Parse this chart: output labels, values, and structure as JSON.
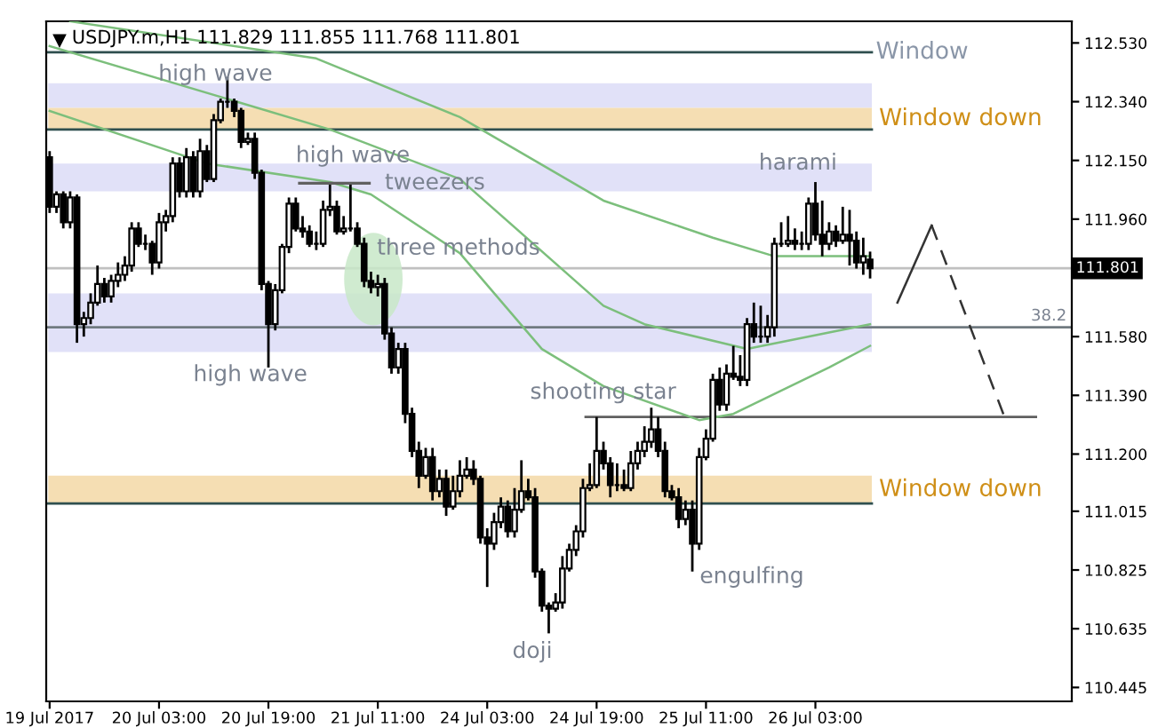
{
  "chart_data": {
    "type": "candlestick",
    "title": "USDJPY.m,H1 111.829 111.855 111.768 111.801",
    "categories": [
      "19 Jul 2017",
      null,
      null,
      null,
      null,
      null,
      null,
      null,
      null,
      null,
      null,
      null,
      null,
      null,
      null,
      null,
      "20 Jul 03:00",
      null,
      null,
      null,
      null,
      null,
      null,
      null,
      null,
      null,
      null,
      null,
      null,
      null,
      null,
      null,
      "20 Jul 19:00",
      null,
      null,
      null,
      null,
      null,
      null,
      null,
      null,
      null,
      null,
      null,
      null,
      null,
      null,
      null,
      "21 Jul 11:00",
      null,
      null,
      null,
      null,
      null,
      null,
      null,
      null,
      null,
      null,
      null,
      null,
      null,
      null,
      null,
      "24 Jul 03:00",
      null,
      null,
      null,
      null,
      null,
      null,
      null,
      null,
      null,
      null,
      null,
      null,
      null,
      null,
      null,
      "24 Jul 19:00",
      null,
      null,
      null,
      null,
      null,
      null,
      null,
      null,
      null,
      null,
      null,
      null,
      null,
      null,
      null,
      "25 Jul 11:00",
      null,
      null,
      null,
      null,
      null,
      null,
      null,
      null,
      null,
      null,
      null,
      null,
      null,
      null,
      null,
      "26 Jul 03:00",
      null,
      null,
      null,
      null,
      null,
      null,
      null,
      null,
      null,
      null,
      null,
      null,
      null,
      null,
      null,
      null,
      null,
      null,
      null,
      null,
      null,
      null,
      null,
      null,
      null,
      null,
      null,
      null,
      null,
      null,
      null,
      null,
      null,
      null,
      null,
      null,
      null
    ],
    "ohlc": [
      [
        112.16,
        112.18,
        111.98,
        112.0
      ],
      [
        112.0,
        112.05,
        111.98,
        112.04
      ],
      [
        112.04,
        112.05,
        111.93,
        111.95
      ],
      [
        111.95,
        112.05,
        111.93,
        112.03
      ],
      [
        112.03,
        112.04,
        111.56,
        111.62
      ],
      [
        111.62,
        111.66,
        111.58,
        111.64
      ],
      [
        111.64,
        111.72,
        111.62,
        111.69
      ],
      [
        111.69,
        111.81,
        111.68,
        111.75
      ],
      [
        111.75,
        111.77,
        111.69,
        111.71
      ],
      [
        111.71,
        111.78,
        111.69,
        111.76
      ],
      [
        111.76,
        111.82,
        111.74,
        111.78
      ],
      [
        111.78,
        111.84,
        111.76,
        111.81
      ],
      [
        111.81,
        111.95,
        111.79,
        111.93
      ],
      [
        111.93,
        111.95,
        111.87,
        111.88
      ],
      [
        111.88,
        111.91,
        111.86,
        111.88
      ],
      [
        111.88,
        111.89,
        111.78,
        111.82
      ],
      [
        111.82,
        111.98,
        111.8,
        111.95
      ],
      [
        111.95,
        111.99,
        111.92,
        111.97
      ],
      [
        111.97,
        112.16,
        111.95,
        112.14
      ],
      [
        112.14,
        112.16,
        112.03,
        112.05
      ],
      [
        112.05,
        112.19,
        112.03,
        112.16
      ],
      [
        112.16,
        112.18,
        112.03,
        112.05
      ],
      [
        112.05,
        112.22,
        112.03,
        112.18
      ],
      [
        112.18,
        112.2,
        112.08,
        112.09
      ],
      [
        112.09,
        112.3,
        112.08,
        112.28
      ],
      [
        112.28,
        112.35,
        112.27,
        112.34
      ],
      [
        112.34,
        112.42,
        112.32,
        112.34
      ],
      [
        112.34,
        112.35,
        112.29,
        112.31
      ],
      [
        112.31,
        112.32,
        112.19,
        112.21
      ],
      [
        112.21,
        112.24,
        112.2,
        112.22
      ],
      [
        112.22,
        112.24,
        112.09,
        112.11
      ],
      [
        112.11,
        112.12,
        111.73,
        111.75
      ],
      [
        111.75,
        111.76,
        111.48,
        111.62
      ],
      [
        111.62,
        111.75,
        111.6,
        111.73
      ],
      [
        111.73,
        111.88,
        111.72,
        111.87
      ],
      [
        111.87,
        112.03,
        111.85,
        112.01
      ],
      [
        112.01,
        112.03,
        111.92,
        111.93
      ],
      [
        111.93,
        111.97,
        111.9,
        111.92
      ],
      [
        111.92,
        111.94,
        111.87,
        111.88
      ],
      [
        111.88,
        111.92,
        111.86,
        111.88
      ],
      [
        111.88,
        112.02,
        111.87,
        111.99
      ],
      [
        111.99,
        112.08,
        111.97,
        112.0
      ],
      [
        112.0,
        112.02,
        111.91,
        111.92
      ],
      [
        111.92,
        111.97,
        111.91,
        111.93
      ],
      [
        111.93,
        112.08,
        111.92,
        111.93
      ],
      [
        111.93,
        111.95,
        111.87,
        111.88
      ],
      [
        111.88,
        111.9,
        111.74,
        111.76
      ],
      [
        111.76,
        111.79,
        111.72,
        111.74
      ],
      [
        111.74,
        111.78,
        111.71,
        111.75
      ],
      [
        111.75,
        111.77,
        111.57,
        111.59
      ],
      [
        111.59,
        111.61,
        111.46,
        111.48
      ],
      [
        111.48,
        111.56,
        111.46,
        111.54
      ],
      [
        111.54,
        111.56,
        111.3,
        111.33
      ],
      [
        111.33,
        111.35,
        111.19,
        111.21
      ],
      [
        111.21,
        111.24,
        111.09,
        111.13
      ],
      [
        111.13,
        111.22,
        111.12,
        111.19
      ],
      [
        111.19,
        111.22,
        111.05,
        111.08
      ],
      [
        111.08,
        111.15,
        111.06,
        111.12
      ],
      [
        111.12,
        111.15,
        111.0,
        111.03
      ],
      [
        111.03,
        111.13,
        111.02,
        111.08
      ],
      [
        111.08,
        111.18,
        111.06,
        111.13
      ],
      [
        111.13,
        111.19,
        111.12,
        111.15
      ],
      [
        111.15,
        111.18,
        111.1,
        111.12
      ],
      [
        111.12,
        111.13,
        110.91,
        110.93
      ],
      [
        110.93,
        110.96,
        110.77,
        110.91
      ],
      [
        110.91,
        111.01,
        110.89,
        110.98
      ],
      [
        110.98,
        111.06,
        110.96,
        111.03
      ],
      [
        111.03,
        111.05,
        110.93,
        110.95
      ],
      [
        110.95,
        111.09,
        110.93,
        111.02
      ],
      [
        111.02,
        111.18,
        111.01,
        111.08
      ],
      [
        111.08,
        111.12,
        111.05,
        111.06
      ],
      [
        111.06,
        111.09,
        110.8,
        110.82
      ],
      [
        110.82,
        110.83,
        110.69,
        110.71
      ],
      [
        110.71,
        110.72,
        110.62,
        110.7
      ],
      [
        110.7,
        110.75,
        110.69,
        110.72
      ],
      [
        110.72,
        110.87,
        110.7,
        110.83
      ],
      [
        110.83,
        110.91,
        110.82,
        110.89
      ],
      [
        110.89,
        110.97,
        110.87,
        110.95
      ],
      [
        110.95,
        111.12,
        110.93,
        111.09
      ],
      [
        111.09,
        111.17,
        111.08,
        111.1
      ],
      [
        111.1,
        111.32,
        111.09,
        111.21
      ],
      [
        111.21,
        111.24,
        111.15,
        111.17
      ],
      [
        111.17,
        111.19,
        111.06,
        111.1
      ],
      [
        111.1,
        111.17,
        111.08,
        111.1
      ],
      [
        111.1,
        111.15,
        111.08,
        111.09
      ],
      [
        111.09,
        111.21,
        111.08,
        111.17
      ],
      [
        111.17,
        111.24,
        111.15,
        111.21
      ],
      [
        111.21,
        111.29,
        111.19,
        111.24
      ],
      [
        111.24,
        111.35,
        111.22,
        111.28
      ],
      [
        111.28,
        111.32,
        111.19,
        111.21
      ],
      [
        111.21,
        111.24,
        111.06,
        111.08
      ],
      [
        111.08,
        111.1,
        111.05,
        111.06
      ],
      [
        111.06,
        111.09,
        110.96,
        110.99
      ],
      [
        110.99,
        111.05,
        110.97,
        111.02
      ],
      [
        111.02,
        111.05,
        110.82,
        110.91
      ],
      [
        110.91,
        111.22,
        110.89,
        111.19
      ],
      [
        111.19,
        111.28,
        111.18,
        111.25
      ],
      [
        111.25,
        111.46,
        111.24,
        111.44
      ],
      [
        111.44,
        111.48,
        111.34,
        111.36
      ],
      [
        111.36,
        111.49,
        111.34,
        111.46
      ],
      [
        111.46,
        111.55,
        111.44,
        111.45
      ],
      [
        111.45,
        111.52,
        111.42,
        111.44
      ],
      [
        111.44,
        111.64,
        111.42,
        111.62
      ],
      [
        111.62,
        111.69,
        111.56,
        111.58
      ],
      [
        111.58,
        111.68,
        111.56,
        111.58
      ],
      [
        111.58,
        111.65,
        111.56,
        111.61
      ],
      [
        111.61,
        111.9,
        111.58,
        111.88
      ],
      [
        111.88,
        111.95,
        111.87,
        111.88
      ],
      [
        111.88,
        111.97,
        111.87,
        111.89
      ],
      [
        111.89,
        111.93,
        111.86,
        111.88
      ],
      [
        111.88,
        111.92,
        111.86,
        111.88
      ],
      [
        111.88,
        112.03,
        111.86,
        112.01
      ],
      [
        112.01,
        112.08,
        111.89,
        111.91
      ],
      [
        111.91,
        112.02,
        111.84,
        111.88
      ],
      [
        111.88,
        111.95,
        111.86,
        111.92
      ],
      [
        111.92,
        111.94,
        111.87,
        111.89
      ],
      [
        111.89,
        112.0,
        111.88,
        111.91
      ],
      [
        111.91,
        111.99,
        111.81,
        111.89
      ],
      [
        111.89,
        111.92,
        111.8,
        111.82
      ],
      [
        111.82,
        111.9,
        111.78,
        111.84
      ],
      [
        111.829,
        111.855,
        111.768,
        111.801
      ],
      null,
      null,
      null,
      null,
      null,
      null,
      null,
      null,
      null,
      null,
      null,
      null,
      null,
      null,
      null,
      null,
      null,
      null,
      null,
      null,
      null,
      null,
      null,
      null,
      null,
      null,
      null,
      null,
      null
    ],
    "series": [
      {
        "type": "line",
        "color": "#7cbf7c",
        "values": [
          null,
          null,
          null,
          112.6,
          null,
          null,
          null,
          null,
          null,
          null,
          null,
          null,
          null,
          null,
          null,
          null,
          null,
          null,
          null,
          null,
          null,
          null,
          null,
          null,
          null,
          null,
          null,
          null,
          null,
          null,
          null,
          null,
          null,
          null,
          null,
          null,
          null,
          null,
          null,
          112.48,
          null,
          null,
          null,
          null,
          null,
          null,
          null,
          null,
          null,
          null,
          null,
          null,
          null,
          null,
          null,
          null,
          null,
          null,
          null,
          null,
          112.29,
          null,
          null,
          null,
          null,
          null,
          null,
          null,
          null,
          null,
          null,
          null,
          null,
          null,
          null,
          null,
          null,
          null,
          null,
          null,
          null,
          112.02,
          null,
          null,
          null,
          null,
          null,
          null,
          null,
          null,
          null,
          null,
          null,
          null,
          null,
          null,
          null,
          111.9,
          null,
          null,
          null,
          null,
          null,
          null,
          null,
          null,
          111.84,
          null,
          null,
          null,
          null,
          null,
          null,
          null,
          null,
          null,
          null,
          null,
          null,
          null,
          111.84,
          null,
          null,
          null,
          null,
          null,
          null,
          null,
          null,
          null,
          null,
          null,
          null,
          null,
          null,
          null,
          null,
          null,
          null,
          null,
          null,
          null,
          null,
          null,
          null,
          null,
          null,
          null,
          null,
          null
        ]
      },
      {
        "type": "line",
        "color": "#7cbf7c",
        "values": [
          112.52,
          null,
          null,
          null,
          null,
          null,
          null,
          null,
          null,
          null,
          null,
          null,
          null,
          null,
          null,
          null,
          null,
          null,
          null,
          null,
          null,
          null,
          null,
          null,
          null,
          null,
          null,
          null,
          null,
          null,
          null,
          null,
          null,
          null,
          null,
          null,
          null,
          null,
          null,
          null,
          null,
          112.25,
          null,
          null,
          null,
          null,
          null,
          null,
          null,
          null,
          null,
          null,
          null,
          null,
          null,
          null,
          null,
          null,
          null,
          null,
          112.09,
          null,
          null,
          null,
          null,
          null,
          null,
          null,
          null,
          null,
          null,
          null,
          null,
          null,
          null,
          null,
          null,
          null,
          null,
          null,
          null,
          111.68,
          null,
          null,
          null,
          null,
          null,
          111.62,
          null,
          null,
          null,
          null,
          null,
          null,
          null,
          null,
          null,
          null,
          null,
          null,
          null,
          null,
          111.54,
          null,
          null,
          null,
          null,
          null,
          null,
          null,
          null,
          null,
          null,
          null,
          null,
          null,
          null,
          null,
          null,
          null,
          111.62,
          null,
          null,
          null,
          null,
          null,
          null,
          null,
          null,
          null,
          null,
          null,
          null,
          null,
          null,
          null,
          null,
          null,
          null,
          null,
          null,
          null,
          null,
          null,
          null,
          null,
          null,
          null,
          null,
          null
        ]
      },
      {
        "type": "line",
        "color": "#7cbf7c",
        "values": [
          112.31,
          null,
          null,
          null,
          null,
          null,
          null,
          null,
          null,
          null,
          null,
          null,
          null,
          null,
          null,
          null,
          null,
          null,
          null,
          null,
          null,
          null,
          null,
          112.14,
          null,
          null,
          null,
          null,
          null,
          null,
          null,
          null,
          null,
          null,
          null,
          null,
          null,
          null,
          null,
          null,
          null,
          112.08,
          null,
          null,
          null,
          null,
          null,
          112.04,
          null,
          null,
          null,
          null,
          null,
          null,
          null,
          null,
          null,
          null,
          null,
          null,
          111.85,
          null,
          null,
          null,
          null,
          null,
          null,
          null,
          null,
          null,
          null,
          null,
          111.54,
          null,
          null,
          null,
          null,
          null,
          null,
          null,
          null,
          111.42,
          null,
          null,
          null,
          null,
          null,
          null,
          null,
          null,
          null,
          null,
          null,
          null,
          null,
          111.31,
          null,
          null,
          null,
          null,
          111.33,
          null,
          null,
          null,
          null,
          null,
          null,
          null,
          null,
          null,
          null,
          null,
          null,
          null,
          111.48,
          null,
          null,
          null,
          null,
          null,
          111.55,
          null,
          null,
          null,
          null,
          null,
          null,
          null,
          null,
          null,
          null,
          null,
          null,
          null,
          null,
          null,
          null,
          null,
          null,
          null,
          null,
          null,
          null,
          null,
          null,
          null,
          null,
          null,
          null,
          null
        ]
      },
      {
        "type": "line",
        "color": "#333333",
        "line_style": "solid",
        "values": [
          null,
          null,
          null,
          null,
          null,
          null,
          null,
          null,
          null,
          null,
          null,
          null,
          null,
          null,
          null,
          null,
          null,
          null,
          null,
          null,
          null,
          null,
          null,
          null,
          null,
          null,
          null,
          null,
          null,
          null,
          null,
          null,
          null,
          null,
          null,
          null,
          null,
          null,
          null,
          null,
          null,
          null,
          null,
          null,
          null,
          null,
          null,
          null,
          null,
          null,
          null,
          null,
          null,
          null,
          null,
          null,
          null,
          null,
          null,
          null,
          null,
          null,
          null,
          null,
          null,
          null,
          null,
          null,
          null,
          null,
          null,
          null,
          null,
          null,
          null,
          null,
          null,
          null,
          null,
          null,
          null,
          null,
          null,
          null,
          null,
          null,
          null,
          null,
          null,
          null,
          null,
          null,
          null,
          null,
          null,
          null,
          null,
          null,
          null,
          null,
          null,
          null,
          null,
          null,
          null,
          null,
          null,
          null,
          null,
          null,
          null,
          null,
          null,
          null,
          null,
          null,
          null,
          null,
          null,
          null,
          null,
          null,
          null,
          null,
          111.69,
          null,
          null,
          null,
          null,
          111.94,
          null,
          null,
          null,
          null,
          null,
          null,
          null,
          null,
          null,
          null,
          null,
          null,
          null,
          null,
          null,
          null,
          null,
          null,
          null,
          null
        ]
      },
      {
        "type": "line",
        "color": "#333333",
        "line_style": "dashed",
        "values": [
          null,
          null,
          null,
          null,
          null,
          null,
          null,
          null,
          null,
          null,
          null,
          null,
          null,
          null,
          null,
          null,
          null,
          null,
          null,
          null,
          null,
          null,
          null,
          null,
          null,
          null,
          null,
          null,
          null,
          null,
          null,
          null,
          null,
          null,
          null,
          null,
          null,
          null,
          null,
          null,
          null,
          null,
          null,
          null,
          null,
          null,
          null,
          null,
          null,
          null,
          null,
          null,
          null,
          null,
          null,
          null,
          null,
          null,
          null,
          null,
          null,
          null,
          null,
          null,
          null,
          null,
          null,
          null,
          null,
          null,
          null,
          null,
          null,
          null,
          null,
          null,
          null,
          null,
          null,
          null,
          null,
          null,
          null,
          null,
          null,
          null,
          null,
          null,
          null,
          null,
          null,
          null,
          null,
          null,
          null,
          null,
          null,
          null,
          null,
          null,
          null,
          null,
          null,
          null,
          null,
          null,
          null,
          null,
          null,
          null,
          null,
          null,
          null,
          null,
          null,
          null,
          null,
          null,
          null,
          null,
          null,
          null,
          null,
          null,
          null,
          null,
          null,
          null,
          null,
          111.94,
          null,
          null,
          null,
          null,
          null,
          null,
          null,
          null,
          null,
          null,
          111.3,
          null,
          null,
          null,
          null,
          null,
          null,
          null,
          null,
          null
        ]
      }
    ],
    "ylim": [
      110.4,
      112.6
    ],
    "yticks": [
      {
        "value": 112.53,
        "label": "112.530"
      },
      {
        "value": 112.34,
        "label": "112.340"
      },
      {
        "value": 112.15,
        "label": "112.150"
      },
      {
        "value": 111.96,
        "label": "111.960"
      },
      {
        "value": 111.58,
        "label": "111.580"
      },
      {
        "value": 111.39,
        "label": "111.390"
      },
      {
        "value": 111.2,
        "label": "111.200"
      },
      111.015,
      110.825,
      110.635,
      110.445
    ],
    "bands": [
      {
        "axis": "y",
        "from": 112.32,
        "to": 112.4,
        "color": "#e1e1f8"
      },
      {
        "axis": "y",
        "from": 112.25,
        "to": 112.32,
        "color": "#f5deb3",
        "label": "Window down"
      },
      {
        "axis": "y",
        "from": 112.05,
        "to": 112.14,
        "color": "#e1e1f8"
      },
      {
        "axis": "y",
        "from": 111.53,
        "to": 111.72,
        "color": "#e1e1f8"
      },
      {
        "axis": "y",
        "from": 111.04,
        "to": 111.13,
        "color": "#f5deb3",
        "label": "Window down"
      }
    ],
    "ref_lines": [
      {
        "axis": "y",
        "value": 112.5,
        "label": "Window",
        "color": "#2f4f4f"
      },
      {
        "axis": "y",
        "value": 112.25,
        "color": "#2f4f4f"
      },
      {
        "axis": "y",
        "value": 111.04,
        "color": "#2f4f4f"
      },
      {
        "axis": "y",
        "value": 111.801,
        "label": "111.801",
        "color": "#c0c0c0"
      },
      {
        "axis": "y",
        "value": 111.61,
        "color": "#707a80"
      },
      {
        "axis": "y",
        "value": 111.32,
        "color": "#606060"
      }
    ],
    "annotations": [
      "high wave",
      "high wave",
      "tweezers",
      "three methods",
      "high wave",
      "shooting star",
      "harami",
      "doji",
      "engulfing",
      "38.2"
    ]
  }
}
